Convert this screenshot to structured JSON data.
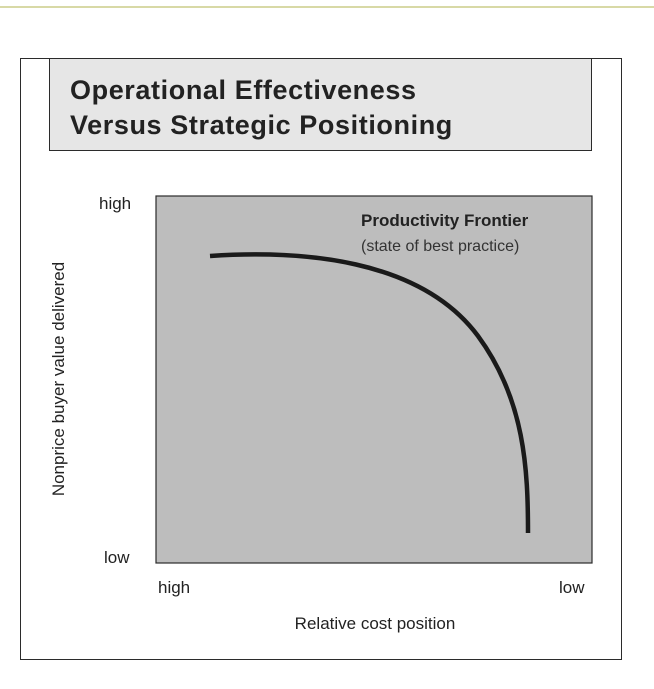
{
  "title": {
    "line1": "Operational Effectiveness",
    "line2": "Versus Strategic Positioning"
  },
  "colors": {
    "accent_rule": "#d8d9a6",
    "title_background": "#e6e6e6",
    "plot_background": "#bdbdbd",
    "curve": "#1a1a1a"
  },
  "plot": {
    "frontier_title": "Productivity Frontier",
    "frontier_subtitle": "(state of best practice)"
  },
  "axes": {
    "ylabel": "Nonprice buyer value delivered",
    "y_high": "high",
    "y_low": "low",
    "xlabel": "Relative cost position",
    "x_high": "high",
    "x_low": "low"
  }
}
